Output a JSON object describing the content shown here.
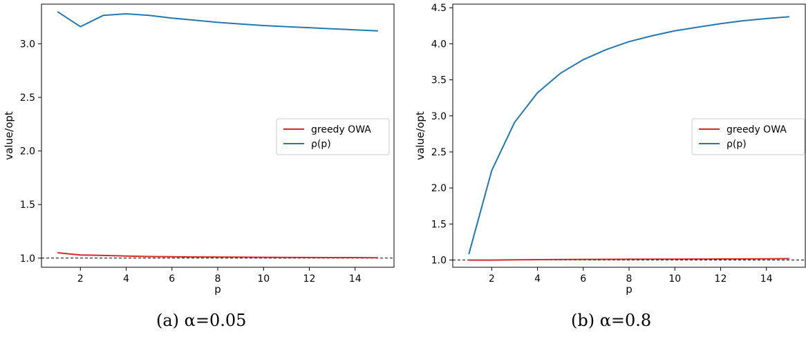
{
  "chart_data": [
    {
      "type": "line",
      "caption": "(a) α=0.05",
      "xlabel": "p",
      "ylabel": "value/opt",
      "xlim": [
        0.3,
        15.7
      ],
      "ylim": [
        0.915,
        3.37
      ],
      "xticks": [
        2,
        4,
        6,
        8,
        10,
        12,
        14
      ],
      "yticks": [
        1.0,
        1.5,
        2.0,
        2.5,
        3.0
      ],
      "ytick_labels": [
        "1.0",
        "1.5",
        "2.0",
        "2.5",
        "3.0"
      ],
      "reference_line": {
        "y": 1.0,
        "style": "dashed",
        "color": "#000000"
      },
      "legend_placement": "center-right",
      "x": [
        1,
        2,
        3,
        4,
        5,
        6,
        7,
        8,
        9,
        10,
        11,
        12,
        13,
        14,
        15
      ],
      "series": [
        {
          "name": "greedy OWA",
          "color": "#d62728",
          "values": [
            1.05,
            1.03,
            1.025,
            1.02,
            1.015,
            1.013,
            1.011,
            1.01,
            1.009,
            1.008,
            1.007,
            1.006,
            1.005,
            1.005,
            1.004
          ]
        },
        {
          "name": "ρ(p)",
          "color": "#1f77b4",
          "values": [
            3.3,
            3.16,
            3.265,
            3.28,
            3.265,
            3.24,
            3.22,
            3.2,
            3.185,
            3.17,
            3.16,
            3.15,
            3.14,
            3.13,
            3.12
          ]
        }
      ]
    },
    {
      "type": "line",
      "caption": "(b) α=0.8",
      "xlabel": "p",
      "ylabel": "value/opt",
      "xlim": [
        0.3,
        15.7
      ],
      "ylim": [
        0.9,
        4.55
      ],
      "xticks": [
        2,
        4,
        6,
        8,
        10,
        12,
        14
      ],
      "yticks": [
        1.0,
        1.5,
        2.0,
        2.5,
        3.0,
        3.5,
        4.0,
        4.5
      ],
      "ytick_labels": [
        "1.0",
        "1.5",
        "2.0",
        "2.5",
        "3.0",
        "3.5",
        "4.0",
        "4.5"
      ],
      "reference_line": {
        "y": 1.0,
        "style": "dashed",
        "color": "#000000"
      },
      "legend_placement": "center-right",
      "x": [
        1,
        2,
        3,
        4,
        5,
        6,
        7,
        8,
        9,
        10,
        11,
        12,
        13,
        14,
        15
      ],
      "series": [
        {
          "name": "greedy OWA",
          "color": "#d62728",
          "values": [
            1.0,
            1.0,
            1.003,
            1.005,
            1.007,
            1.009,
            1.01,
            1.011,
            1.012,
            1.013,
            1.014,
            1.015,
            1.016,
            1.018,
            1.02
          ]
        },
        {
          "name": "ρ(p)",
          "color": "#1f77b4",
          "values": [
            1.08,
            2.24,
            2.91,
            3.32,
            3.59,
            3.78,
            3.92,
            4.03,
            4.11,
            4.18,
            4.23,
            4.28,
            4.32,
            4.35,
            4.375
          ]
        }
      ]
    }
  ]
}
